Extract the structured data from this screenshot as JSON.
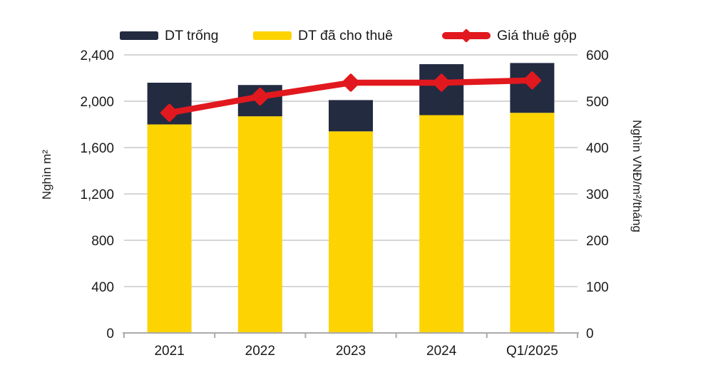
{
  "legend": [
    {
      "label": "DT trống",
      "swatch": "bar",
      "color": "#232B41"
    },
    {
      "label": "DT đã cho thuê",
      "swatch": "bar",
      "color": "#FDD301"
    },
    {
      "label": "Giá thuê gộp",
      "swatch": "line",
      "color": "#E1191E"
    }
  ],
  "left_axis": {
    "title": "Nghìn m²",
    "tick_labels": [
      "0",
      "400",
      "800",
      "1,200",
      "1,600",
      "2,000",
      "2,400"
    ],
    "min": 0,
    "max": 2400,
    "step": 400
  },
  "right_axis": {
    "title": "Nghìn VNĐ/m²/tháng",
    "tick_labels": [
      "0",
      "100",
      "200",
      "300",
      "400",
      "500",
      "600"
    ],
    "min": 0,
    "max": 600,
    "step": 100
  },
  "chart_data": {
    "type": "bar",
    "subtype": "stacked-bars-with-line-overlay",
    "categories": [
      "2021",
      "2022",
      "2023",
      "2024",
      "Q1/2025"
    ],
    "series": [
      {
        "name": "DT đã cho thuê",
        "type": "bar-stack-bottom",
        "axis": "left",
        "color": "#FDD301",
        "values": [
          1800,
          1870,
          1740,
          1880,
          1900
        ]
      },
      {
        "name": "DT trống",
        "type": "bar-stack-top",
        "axis": "left",
        "color": "#232B41",
        "values": [
          360,
          270,
          270,
          440,
          430
        ]
      },
      {
        "name": "Giá thuê gộp",
        "type": "line",
        "axis": "right",
        "color": "#E1191E",
        "marker": "diamond",
        "values": [
          475,
          510,
          540,
          540,
          545
        ]
      }
    ],
    "bar_totals": [
      2160,
      2140,
      2010,
      2320,
      2330
    ],
    "ylabel_left": "Nghìn m²",
    "ylabel_right": "Nghìn VNĐ/m²/tháng",
    "ylim_left": [
      0,
      2400
    ],
    "ylim_right": [
      0,
      600
    ],
    "grid": true,
    "legend_position": "top",
    "colors": {
      "gridline": "#C8C8C8",
      "axis_line": "#AAAAAA",
      "text": "#1A1A1A",
      "background": "#FFFFFF"
    }
  }
}
